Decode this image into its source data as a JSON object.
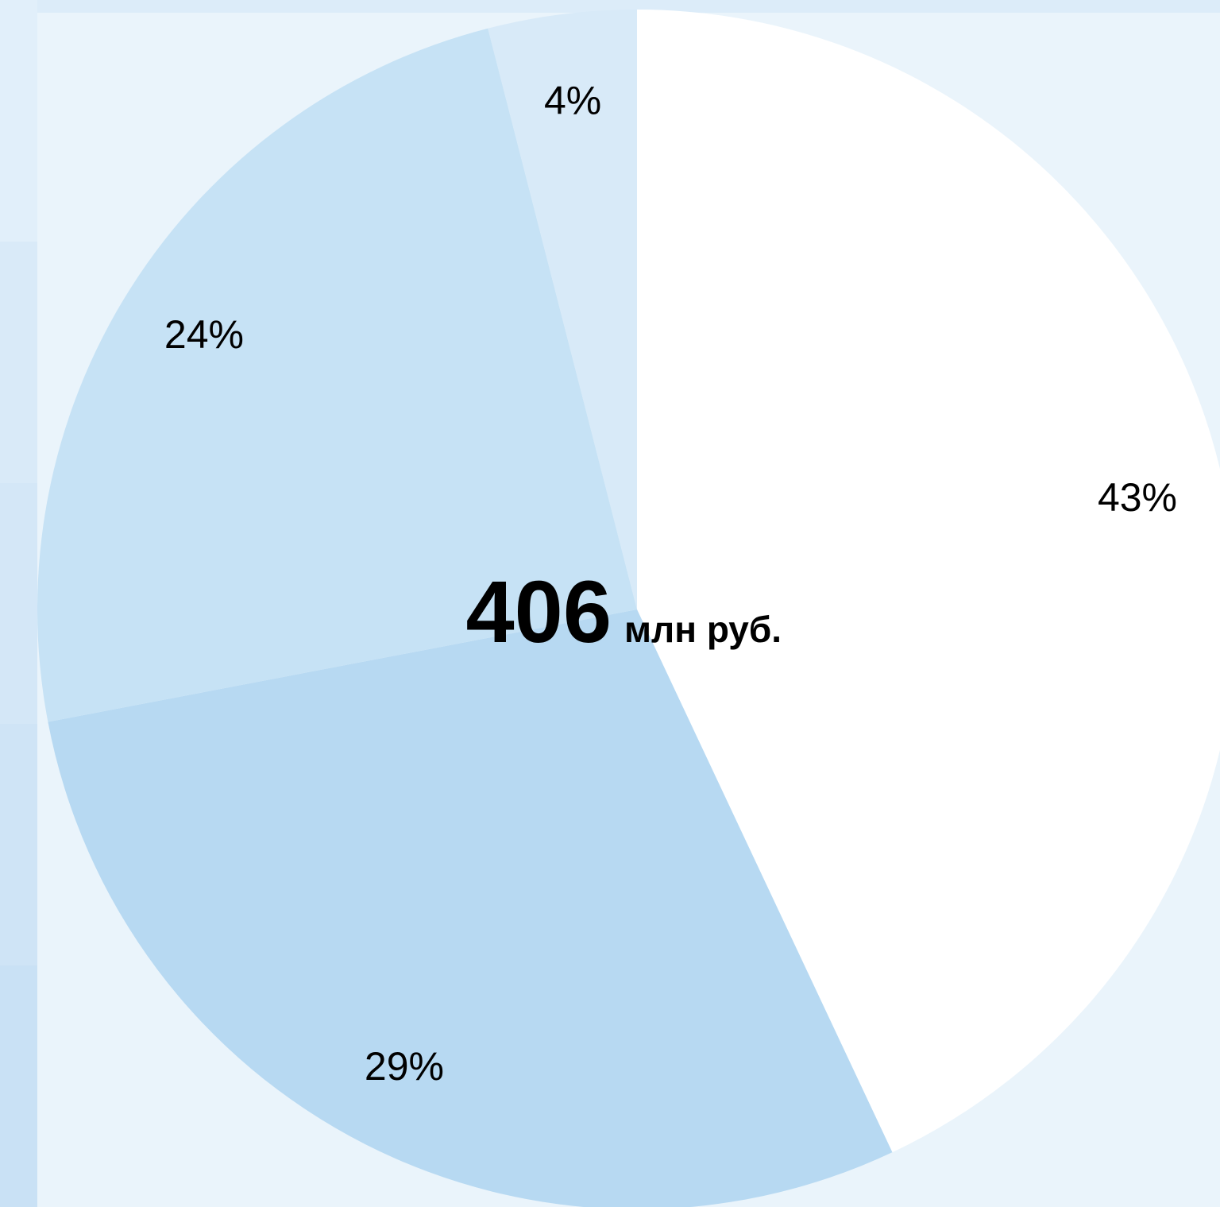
{
  "chart_data": {
    "type": "pie",
    "total_value": "406",
    "total_unit": "млн руб.",
    "slices": [
      {
        "value": 43,
        "label": "43%",
        "color": "#ffffff"
      },
      {
        "value": 29,
        "label": "29%",
        "color": "#b7d9f2"
      },
      {
        "value": 24,
        "label": "24%",
        "color": "#c6e2f5"
      },
      {
        "value": 4,
        "label": "4%",
        "color": "#d8eaf8"
      }
    ]
  },
  "colors": {
    "background": "#eaf4fb",
    "band": "#dcecf9",
    "left_bands": [
      "#e1effa",
      "#d9eaf8",
      "#d4e7f7",
      "#cfe4f6",
      "#c9e1f5"
    ]
  }
}
